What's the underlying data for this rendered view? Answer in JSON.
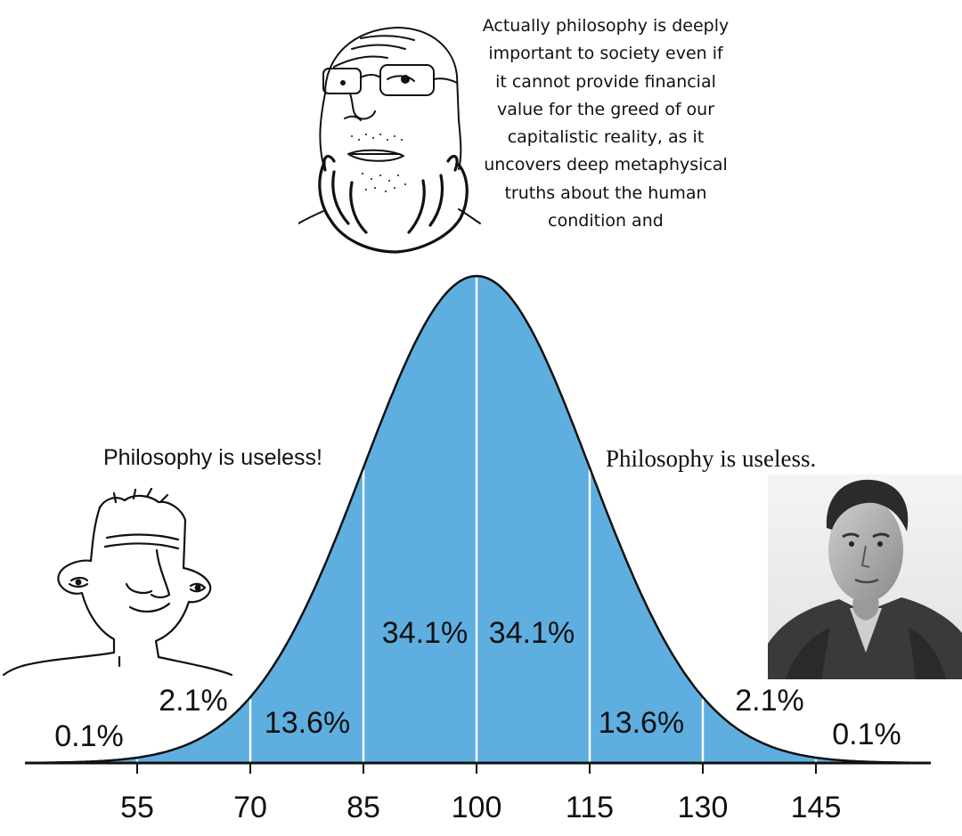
{
  "captions": {
    "smart_wojak": "Actually philosophy is deeply important to society even if it cannot provide financial value for the greed of our capitalistic reality, as it uncovers deep metaphysical truths about the human condition and",
    "dumb_wojak": "Philosophy is useless!",
    "philosopher": "Philosophy is useless."
  },
  "characters": {
    "left": "wojak-face-icon",
    "center": "bearded-glasses-wojak-icon",
    "right": "philosopher-portrait"
  },
  "colors": {
    "fill": "#5faee0",
    "divider": "#ffffff",
    "curve": "#111111",
    "text": "#111111"
  },
  "chart_data": {
    "type": "area",
    "mean": 100,
    "sd": 15,
    "x_ticks": [
      55,
      70,
      85,
      100,
      115,
      130,
      145
    ],
    "xlim": [
      42,
      158
    ],
    "regions": [
      {
        "label": "0.1%",
        "from": 40,
        "to": 55
      },
      {
        "label": "2.1%",
        "from": 55,
        "to": 70
      },
      {
        "label": "13.6%",
        "from": 70,
        "to": 85
      },
      {
        "label": "34.1%",
        "from": 85,
        "to": 100
      },
      {
        "label": "34.1%",
        "from": 100,
        "to": 115
      },
      {
        "label": "13.6%",
        "from": 115,
        "to": 130
      },
      {
        "label": "2.1%",
        "from": 130,
        "to": 145
      },
      {
        "label": "0.1%",
        "from": 145,
        "to": 160
      }
    ]
  }
}
